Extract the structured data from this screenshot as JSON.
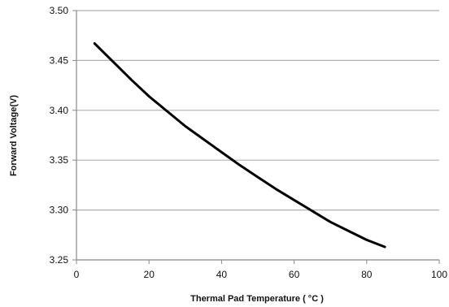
{
  "chart_data": {
    "type": "line",
    "title": "",
    "xlabel": "Thermal Pad Temperature ( °C )",
    "ylabel": "Forward Voltage(V)",
    "xlim": [
      0,
      100
    ],
    "ylim": [
      3.25,
      3.5
    ],
    "xticks": [
      0,
      20,
      40,
      60,
      80,
      100
    ],
    "yticks": [
      3.25,
      3.3,
      3.35,
      3.4,
      3.45,
      3.5
    ],
    "xtick_labels": [
      "0",
      "20",
      "40",
      "60",
      "80",
      "100"
    ],
    "ytick_labels": [
      "3.25",
      "3.30",
      "3.35",
      "3.40",
      "3.45",
      "3.50"
    ],
    "grid": "horizontal",
    "legend": "none",
    "series": [
      {
        "x": [
          5,
          10,
          15,
          20,
          25,
          30,
          35,
          40,
          45,
          50,
          55,
          60,
          65,
          70,
          75,
          80,
          85
        ],
        "y": [
          3.467,
          3.449,
          3.431,
          3.414,
          3.399,
          3.384,
          3.371,
          3.358,
          3.345,
          3.333,
          3.321,
          3.31,
          3.299,
          3.288,
          3.279,
          3.27,
          3.263
        ],
        "color": "#000000"
      }
    ],
    "colors": {
      "grid": "#b0b0b0",
      "axis": "#888888",
      "line": "#000000"
    }
  }
}
